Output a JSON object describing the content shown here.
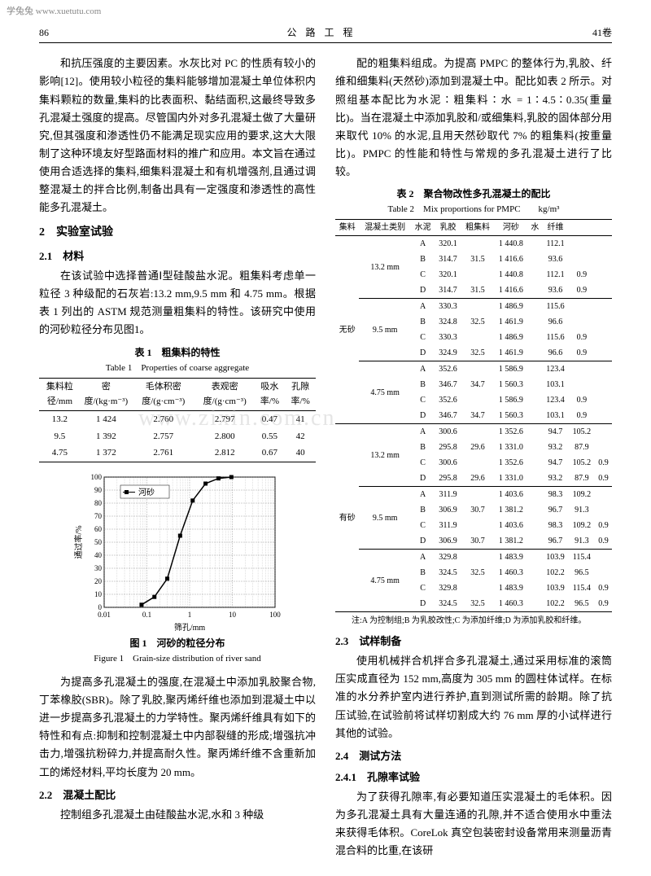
{
  "watermark_top": "学兔兔  www.xuetutu.com",
  "watermark_mid": "www.zixin.com.cn",
  "header": {
    "page": "86",
    "title": "公 路 工 程",
    "volume": "41卷"
  },
  "left": {
    "p1": "和抗压强度的主要因素。水灰比对 PC 的性质有较小的影响[12]。使用较小粒径的集料能够增加混凝土单位体积内集料颗粒的数量,集料的比表面积、黏结面积,这最终导致多孔混凝土强度的提高。尽管国内外对多孔混凝土做了大量研究,但其强度和渗透性仍不能满足现实应用的要求,这大大限制了这种环境友好型路面材料的推广和应用。本文旨在通过使用合适选择的集料,细集料混凝土和有机增强剂,且通过调整混凝土的拌合比例,制备出具有一定强度和渗透性的高性能多孔混凝土。",
    "sec2": "2　实验室试验",
    "sec21": "2.1　材料",
    "p2": "在该试验中选择普通Ⅰ型硅酸盐水泥。粗集料考虑单一粒径 3 种级配的石灰岩:13.2 mm,9.5 mm 和 4.75 mm。根据表 1 列出的 ASTM 规范测量粗集料的特性。该研究中使用的河砂粒径分布见图1。",
    "t1_cap": "表 1　粗集料的特性",
    "t1_cap_en": "Table 1　Properties of coarse aggregate",
    "t1_head": [
      "集料粒径/mm",
      "密度/(kg·m⁻³)",
      "毛体积密度/(g·cm⁻³)",
      "表观密度/(g·cm⁻³)",
      "吸水率/%",
      "孔隙率/%"
    ],
    "t1_rows": [
      [
        "13.2",
        "1 424",
        "2.760",
        "2.797",
        "0.47",
        "41"
      ],
      [
        "9.5",
        "1 392",
        "2.757",
        "2.800",
        "0.55",
        "42"
      ],
      [
        "4.75",
        "1 372",
        "2.761",
        "2.812",
        "0.67",
        "40"
      ]
    ],
    "fig1": {
      "xlabel": "筛孔/mm",
      "ylabel": "通过率/%",
      "legend": "河砂",
      "xticks": [
        "0.01",
        "0.1",
        "1",
        "10",
        "100"
      ],
      "yticks": [
        0,
        10,
        20,
        30,
        40,
        50,
        60,
        70,
        80,
        90,
        100
      ],
      "points_x": [
        0.075,
        0.15,
        0.3,
        0.6,
        1.18,
        2.36,
        4.75,
        9.5
      ],
      "points_y": [
        2,
        8,
        22,
        55,
        82,
        95,
        99,
        100
      ],
      "line_color": "#000000",
      "grid_color": "#666666",
      "bg": "#ffffff"
    },
    "fig1_cap": "图 1　河砂的粒径分布",
    "fig1_cap_en": "Figure 1　Grain-size distribution of river sand",
    "p3": "为提高多孔混凝土的强度,在混凝土中添加乳胶聚合物,丁苯橡胶(SBR)。除了乳胶,聚丙烯纤维也添加到混凝土中以进一步提高多孔混凝土的力学特性。聚丙烯纤维具有如下的特性和有点:抑制和控制混凝土中内部裂缝的形成;增强抗冲击力,增强抗粉碎力,并提高耐久性。聚丙烯纤维不含重新加工的烯烃材料,平均长度为 20 mm。",
    "sec22": "2.2　混凝土配比",
    "p4": "控制组多孔混凝土由硅酸盐水泥,水和 3 种级"
  },
  "right": {
    "p1": "配的粗集料组成。为提高 PMPC 的整体行为,乳胶、纤维和细集料(天然砂)添加到混凝土中。配比如表 2 所示。对照组基本配比为水泥∶粗集料∶水 = 1∶4.5∶0.35(重量比)。当在混凝土中添加乳胶和/或细集料,乳胶的固体部分用来取代 10% 的水泥,且用天然砂取代 7% 的粗集料(按重量比)。PMPC 的性能和特性与常规的多孔混凝土进行了比较。",
    "t2_cap": "表 2　聚合物改性多孔混凝土的配比",
    "t2_cap_en": "Table 2　Mix proportions for PMPC　　kg/m³",
    "t2_head": [
      "集料",
      "混凝土类别",
      "水泥",
      "乳胶",
      "粗集料",
      "河砂",
      "水",
      "纤维"
    ],
    "t2_groups": [
      {
        "group": "无砂",
        "sizes": [
          {
            "size": "13.2 mm",
            "rows": [
              [
                "A",
                "320.1",
                "",
                "1 440.8",
                "",
                "112.1",
                ""
              ],
              [
                "B",
                "314.7",
                "31.5",
                "1 416.6",
                "",
                "93.6",
                ""
              ],
              [
                "C",
                "320.1",
                "",
                "1 440.8",
                "",
                "112.1",
                "0.9"
              ],
              [
                "D",
                "314.7",
                "31.5",
                "1 416.6",
                "",
                "93.6",
                "0.9"
              ]
            ]
          },
          {
            "size": "9.5 mm",
            "rows": [
              [
                "A",
                "330.3",
                "",
                "1 486.9",
                "",
                "115.6",
                ""
              ],
              [
                "B",
                "324.8",
                "32.5",
                "1 461.9",
                "",
                "96.6",
                ""
              ],
              [
                "C",
                "330.3",
                "",
                "1 486.9",
                "",
                "115.6",
                "0.9"
              ],
              [
                "D",
                "324.9",
                "32.5",
                "1 461.9",
                "",
                "96.6",
                "0.9"
              ]
            ]
          },
          {
            "size": "4.75 mm",
            "rows": [
              [
                "A",
                "352.6",
                "",
                "1 586.9",
                "",
                "123.4",
                ""
              ],
              [
                "B",
                "346.7",
                "34.7",
                "1 560.3",
                "",
                "103.1",
                ""
              ],
              [
                "C",
                "352.6",
                "",
                "1 586.9",
                "",
                "123.4",
                "0.9"
              ],
              [
                "D",
                "346.7",
                "34.7",
                "1 560.3",
                "",
                "103.1",
                "0.9"
              ]
            ]
          }
        ]
      },
      {
        "group": "有砂",
        "sizes": [
          {
            "size": "13.2 mm",
            "rows": [
              [
                "A",
                "300.6",
                "",
                "1 352.6",
                "",
                "94.7",
                "105.2",
                ""
              ],
              [
                "B",
                "295.8",
                "29.6",
                "1 331.0",
                "",
                "93.2",
                "87.9",
                ""
              ],
              [
                "C",
                "300.6",
                "",
                "1 352.6",
                "",
                "94.7",
                "105.2",
                "0.9"
              ],
              [
                "D",
                "295.8",
                "29.6",
                "1 331.0",
                "",
                "93.2",
                "87.9",
                "0.9"
              ]
            ]
          },
          {
            "size": "9.5 mm",
            "rows": [
              [
                "A",
                "311.9",
                "",
                "1 403.6",
                "",
                "98.3",
                "109.2",
                ""
              ],
              [
                "B",
                "306.9",
                "30.7",
                "1 381.2",
                "",
                "96.7",
                "91.3",
                ""
              ],
              [
                "C",
                "311.9",
                "",
                "1 403.6",
                "",
                "98.3",
                "109.2",
                "0.9"
              ],
              [
                "D",
                "306.9",
                "30.7",
                "1 381.2",
                "",
                "96.7",
                "91.3",
                "0.9"
              ]
            ]
          },
          {
            "size": "4.75 mm",
            "rows": [
              [
                "A",
                "329.8",
                "",
                "1 483.9",
                "",
                "103.9",
                "115.4",
                ""
              ],
              [
                "B",
                "324.5",
                "32.5",
                "1 460.3",
                "",
                "102.2",
                "96.5",
                ""
              ],
              [
                "C",
                "329.8",
                "",
                "1 483.9",
                "",
                "103.9",
                "115.4",
                "0.9"
              ],
              [
                "D",
                "324.5",
                "32.5",
                "1 460.3",
                "",
                "102.2",
                "96.5",
                "0.9"
              ]
            ]
          }
        ]
      }
    ],
    "t2_note": "注:A 为控制组;B 为乳胶改性;C 为添加纤维;D 为添加乳胶和纤维。",
    "sec23": "2.3　试样制备",
    "p2": "使用机械拌合机拌合多孔混凝土,通过采用标准的滚筒压实成直径为 152 mm,高度为 305 mm 的圆柱体试样。在标准的水分养护室内进行养护,直到测试所需的龄期。除了抗压试验,在试验前将试样切割成大约 76 mm 厚的小试样进行其他的试验。",
    "sec24": "2.4　测试方法",
    "sec241": "2.4.1　孔隙率试验",
    "p3": "为了获得孔隙率,有必要知道压实混凝土的毛体积。因为多孔混凝土具有大量连通的孔隙,并不适合使用水中重法来获得毛体积。CoreLok 真空包装密封设备常用来测量沥青混合料的比重,在该研"
  }
}
